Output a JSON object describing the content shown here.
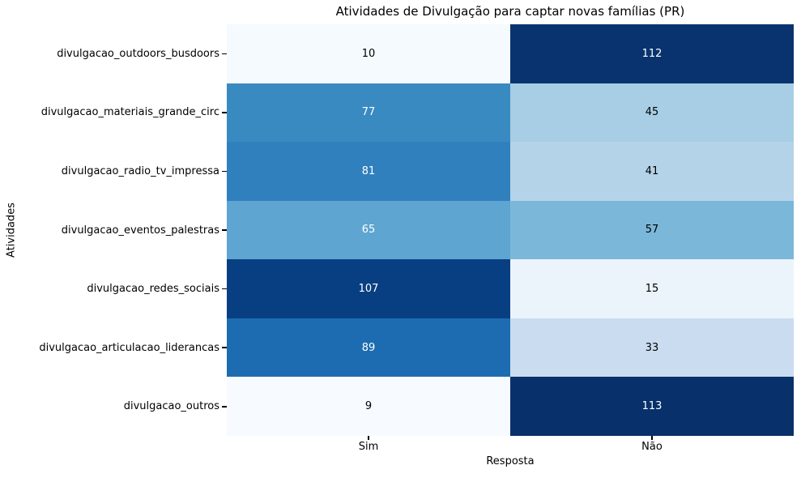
{
  "figure": {
    "background_color": "#ffffff"
  },
  "chart_data": {
    "type": "heatmap",
    "title": "Atividades de Divulgação para captar novas famílias (PR)",
    "xlabel": "Resposta",
    "ylabel": "Atividades",
    "columns": [
      "Sim",
      "Não"
    ],
    "rows": [
      "divulgacao_outdoors_busdoors",
      "divulgacao_materiais_grande_circ",
      "divulgacao_radio_tv_impressa",
      "divulgacao_eventos_palestras",
      "divulgacao_redes_sociais",
      "divulgacao_articulacao_liderancas",
      "divulgacao_outros"
    ],
    "values": [
      [
        10,
        112
      ],
      [
        77,
        45
      ],
      [
        81,
        41
      ],
      [
        65,
        57
      ],
      [
        107,
        15
      ],
      [
        89,
        33
      ],
      [
        9,
        113
      ]
    ],
    "colormap": "Blues",
    "vmin": 9,
    "vmax": 113,
    "colorbar": false,
    "grid": false,
    "legend": "none",
    "cell_colors": [
      [
        "#f5fafe",
        "#08336f"
      ],
      [
        "#3a8ac2",
        "#a7cee4"
      ],
      [
        "#3080bd",
        "#b4d3e9"
      ],
      [
        "#5ea5d1",
        "#7bb7d9"
      ],
      [
        "#083f82",
        "#ebf4fb"
      ],
      [
        "#1d6cb1",
        "#caddf0"
      ],
      [
        "#f7fbff",
        "#08306b"
      ]
    ],
    "cell_text_colors": [
      [
        "#000000",
        "#ffffff"
      ],
      [
        "#ffffff",
        "#000000"
      ],
      [
        "#ffffff",
        "#000000"
      ],
      [
        "#ffffff",
        "#000000"
      ],
      [
        "#ffffff",
        "#000000"
      ],
      [
        "#ffffff",
        "#000000"
      ],
      [
        "#000000",
        "#ffffff"
      ]
    ]
  }
}
